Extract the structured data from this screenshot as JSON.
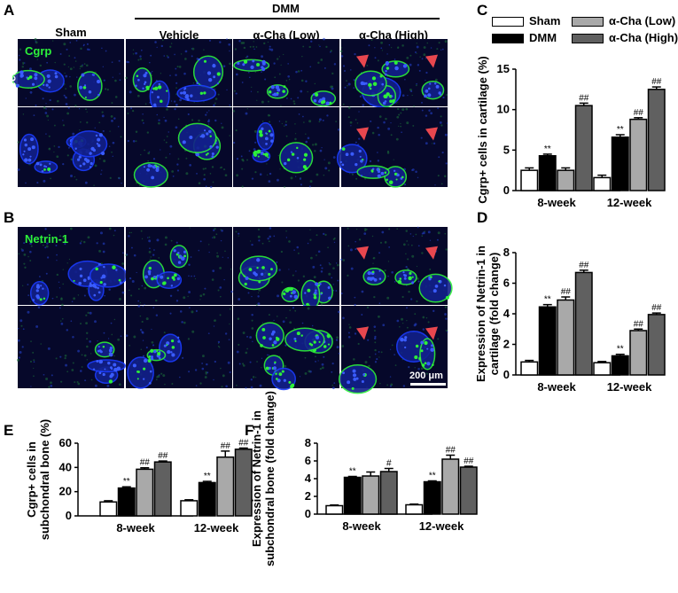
{
  "panels": {
    "A": "A",
    "B": "B",
    "C": "C",
    "D": "D",
    "E": "E",
    "F": "F"
  },
  "micrograph_headers": {
    "group": "DMM",
    "sham": "Sham",
    "vehicle": "Vehicle",
    "low": "α-Cha (Low)",
    "high": "α-Cha (High)"
  },
  "stains": {
    "a": "Cgrp",
    "b": "Netrin-1"
  },
  "row_labels": {
    "w8": "8-week",
    "w12": "12-week"
  },
  "scale_bar": "200 μm",
  "colors": {
    "sham": "#ffffff",
    "dmm": "#000000",
    "low": "#a9a9a9",
    "high": "#606060",
    "stain_green": "#2df03a",
    "nuclei_blue": "#1a3cff",
    "arrow": "#e8474f"
  },
  "legend": {
    "sham": "Sham",
    "dmm": "DMM",
    "low": "α-Cha (Low)",
    "high": "α-Cha (High)"
  },
  "chart_data": [
    {
      "id": "C",
      "type": "bar",
      "ylabel": "Cgrp+ cells in cartilage (%)",
      "ylim": [
        0,
        15
      ],
      "yticks": [
        0,
        5,
        10,
        15
      ],
      "categories": [
        "8-week",
        "12-week"
      ],
      "series": [
        {
          "name": "Sham",
          "values": [
            2.5,
            1.6
          ],
          "errors": [
            0.3,
            0.3
          ]
        },
        {
          "name": "DMM",
          "values": [
            4.3,
            6.6
          ],
          "errors": [
            0.2,
            0.3
          ]
        },
        {
          "name": "α-Cha (Low)",
          "values": [
            2.5,
            8.8
          ],
          "errors": [
            0.3,
            0.2
          ]
        },
        {
          "name": "α-Cha (High)",
          "values": [
            10.5,
            12.5
          ],
          "errors": [
            0.3,
            0.3
          ]
        }
      ],
      "annotations": [
        [
          "",
          "**",
          "",
          "##"
        ],
        [
          "",
          "**",
          "##",
          "##"
        ]
      ]
    },
    {
      "id": "D",
      "type": "bar",
      "ylabel": "Expression of Netrin-1 in cartilage (fold change)",
      "ylim": [
        0,
        8
      ],
      "yticks": [
        0,
        2,
        4,
        6,
        8
      ],
      "categories": [
        "8-week",
        "12-week"
      ],
      "series": [
        {
          "name": "Sham",
          "values": [
            0.85,
            0.8
          ],
          "errors": [
            0.1,
            0.08
          ]
        },
        {
          "name": "DMM",
          "values": [
            4.45,
            1.25
          ],
          "errors": [
            0.15,
            0.1
          ]
        },
        {
          "name": "α-Cha (Low)",
          "values": [
            4.9,
            2.9
          ],
          "errors": [
            0.2,
            0.1
          ]
        },
        {
          "name": "α-Cha (High)",
          "values": [
            6.7,
            3.95
          ],
          "errors": [
            0.15,
            0.1
          ]
        }
      ],
      "annotations": [
        [
          "",
          "**",
          "##",
          "##"
        ],
        [
          "",
          "**",
          "##",
          "##"
        ]
      ]
    },
    {
      "id": "E",
      "type": "bar",
      "ylabel": "Cgrp+ cells in subchondral bone (%)",
      "ylim": [
        0,
        60
      ],
      "yticks": [
        0,
        20,
        40,
        60
      ],
      "categories": [
        "8-week",
        "12-week"
      ],
      "series": [
        {
          "name": "Sham",
          "values": [
            11.5,
            12.5
          ],
          "errors": [
            1,
            0.8
          ]
        },
        {
          "name": "DMM",
          "values": [
            23,
            27.5
          ],
          "errors": [
            1,
            1
          ]
        },
        {
          "name": "α-Cha (Low)",
          "values": [
            38.5,
            48.5
          ],
          "errors": [
            1.2,
            5
          ]
        },
        {
          "name": "α-Cha (High)",
          "values": [
            44.5,
            55
          ],
          "errors": [
            0.8,
            1
          ]
        }
      ],
      "annotations": [
        [
          "",
          "**",
          "##",
          "##"
        ],
        [
          "",
          "**",
          "##",
          "##"
        ]
      ]
    },
    {
      "id": "F",
      "type": "bar",
      "ylabel": "Expression of Netrin-1 in subchondral bone (fold change)",
      "ylim": [
        0,
        8
      ],
      "yticks": [
        0,
        2,
        4,
        6,
        8
      ],
      "categories": [
        "8-week",
        "12-week"
      ],
      "series": [
        {
          "name": "Sham",
          "values": [
            0.95,
            1.05
          ],
          "errors": [
            0.08,
            0.08
          ]
        },
        {
          "name": "DMM",
          "values": [
            4.15,
            3.65
          ],
          "errors": [
            0.1,
            0.1
          ]
        },
        {
          "name": "α-Cha (Low)",
          "values": [
            4.3,
            6.2
          ],
          "errors": [
            0.45,
            0.45
          ]
        },
        {
          "name": "α-Cha (High)",
          "values": [
            4.8,
            5.3
          ],
          "errors": [
            0.35,
            0.1
          ]
        }
      ],
      "annotations": [
        [
          "",
          "**",
          "",
          "#"
        ],
        [
          "",
          "**",
          "##",
          "##"
        ]
      ]
    }
  ]
}
